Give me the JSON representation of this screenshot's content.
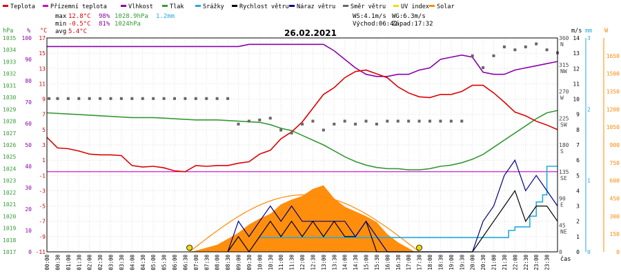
{
  "legend": [
    {
      "label": "Teplota",
      "color": "#dd0000"
    },
    {
      "label": "Přízemní teplota",
      "color": "#cc00cc"
    },
    {
      "label": "Vlhkost",
      "color": "#8800aa"
    },
    {
      "label": "Tlak",
      "color": "#339933"
    },
    {
      "label": "Srážky",
      "color": "#22aadd"
    },
    {
      "label": "Rychlost větru",
      "color": "#000000"
    },
    {
      "label": "Náraz větru",
      "color": "#000088"
    },
    {
      "label": "Směr větru",
      "color": "#666666"
    },
    {
      "label": "UV index",
      "color": "#eedd00"
    },
    {
      "label": "Solar",
      "color": "#ff8800"
    }
  ],
  "stats": {
    "max_label": "max",
    "max_temp": "12.8°C",
    "max_hum": "98%",
    "max_press": "1028.9hPa",
    "rain_total": "1.2mm",
    "min_label": "min",
    "min_temp": "-0.5°C",
    "min_hum": "81%",
    "min_press": "1024hPa",
    "avg_label": "avg",
    "avg_temp": "5.4°C",
    "wind_avg": "WS:4.1m/s",
    "wind_gust": "WG:6.3m/s",
    "sunrise": "Východ:06:42",
    "sunset": "Západ:17:32"
  },
  "colors": {
    "temperature": "#dd0000",
    "ground_temp": "#cc00cc",
    "humidity": "#8800aa",
    "pressure": "#339933",
    "rain": "#22aadd",
    "wind": "#000000",
    "gust": "#000088",
    "direction": "#666666",
    "uv": "#eedd00",
    "solar": "#ff8800",
    "solar_potential": "#ff8800"
  },
  "chart_data": {
    "type": "line",
    "title": "26.02.2021",
    "xlabel": "čas",
    "x_ticks": [
      "00:00",
      "00:30",
      "01:00",
      "01:30",
      "02:00",
      "02:30",
      "03:00",
      "03:30",
      "04:00",
      "04:30",
      "05:00",
      "05:30",
      "06:00",
      "06:30",
      "07:00",
      "07:30",
      "08:00",
      "08:30",
      "09:00",
      "09:30",
      "10:00",
      "10:30",
      "11:00",
      "11:30",
      "12:00",
      "12:30",
      "13:00",
      "13:30",
      "14:00",
      "14:30",
      "15:00",
      "15:30",
      "16:00",
      "16:30",
      "17:00",
      "17:30",
      "18:00",
      "18:30",
      "19:00",
      "19:30",
      "20:00",
      "20:30",
      "21:00",
      "21:30",
      "22:00",
      "22:30",
      "23:00",
      "23:30"
    ],
    "x_range_hours": [
      0,
      24
    ],
    "axes": {
      "pressure": {
        "unit": "hPa",
        "range": [
          1017,
          1035
        ],
        "ticks": [
          "1035",
          "1034",
          "1033",
          "1032",
          "1031",
          "1030",
          "1029",
          "1028",
          "1027",
          "1026",
          "1025",
          "1024",
          "1023",
          "1022",
          "1021",
          "1020",
          "1019",
          "1018",
          "1017"
        ]
      },
      "humidity": {
        "unit": "%",
        "range": [
          0,
          100
        ],
        "ticks": [
          "100",
          "90",
          "80",
          "70",
          "60",
          "50",
          "40",
          "30",
          "20",
          "10",
          "0"
        ]
      },
      "temperature": {
        "unit": "°C",
        "range": [
          -11,
          17
        ],
        "ticks": [
          "17",
          "15",
          "13",
          "11",
          "9",
          "7",
          "5",
          "3",
          "1",
          "-1",
          "-3",
          "-5",
          "-7",
          "-9",
          "-11"
        ]
      },
      "wind_speed": {
        "unit": "m/s",
        "range": [
          0,
          14
        ],
        "ticks": [
          "14",
          "13",
          "12",
          "11",
          "10",
          "9",
          "8",
          "7",
          "6",
          "5",
          "4",
          "3",
          "2",
          "1",
          "0"
        ]
      },
      "direction": {
        "ticks": [
          "360\nN",
          "315\nNW",
          "270\nW",
          "225\nSW",
          "180\nS",
          "135\nSE",
          "90\nE",
          "45\nNE",
          "0"
        ]
      },
      "rain": {
        "unit": "mm",
        "range": [
          0,
          3
        ],
        "ticks": [
          "3",
          "2",
          "1",
          "0"
        ]
      },
      "solar": {
        "unit": "W",
        "range": [
          0,
          1800
        ],
        "ticks": [
          "1650",
          "1500",
          "1350",
          "1200",
          "1050",
          "900",
          "750",
          "600",
          "450",
          "300",
          "150",
          "0"
        ]
      }
    },
    "series": [
      {
        "name": "Teplota",
        "unit": "°C",
        "x": [
          0,
          0.5,
          1,
          1.5,
          2,
          2.5,
          3,
          3.5,
          4,
          4.5,
          5,
          5.5,
          6,
          6.5,
          7,
          7.5,
          8,
          8.5,
          9,
          9.5,
          10,
          10.5,
          11,
          11.5,
          12,
          12.5,
          13,
          13.5,
          14,
          14.5,
          15,
          15.5,
          16,
          16.5,
          17,
          17.5,
          18,
          18.5,
          19,
          19.5,
          20,
          20.5,
          21,
          21.5,
          22,
          22.5,
          23,
          23.5,
          24
        ],
        "values": [
          4.0,
          2.6,
          2.5,
          2.2,
          1.8,
          1.7,
          1.7,
          1.6,
          0.3,
          0.1,
          0.2,
          0.0,
          -0.4,
          -0.5,
          0.3,
          0.2,
          0.3,
          0.3,
          0.6,
          0.8,
          1.8,
          2.3,
          3.8,
          4.7,
          6.0,
          7.8,
          9.6,
          10.5,
          11.8,
          12.6,
          12.8,
          12.3,
          11.8,
          10.6,
          9.8,
          9.3,
          9.2,
          9.6,
          9.6,
          10.0,
          10.8,
          10.8,
          9.8,
          8.6,
          7.3,
          6.8,
          6.1,
          5.6,
          5.0
        ]
      },
      {
        "name": "Vlhkost",
        "unit": "%",
        "x": [
          0,
          1,
          2,
          3,
          4,
          5,
          6,
          7,
          8,
          9,
          9.5,
          10,
          11,
          12,
          12.5,
          13,
          13.5,
          14,
          14.5,
          15,
          15.5,
          16,
          16.5,
          17,
          17.5,
          18,
          18.5,
          19,
          19.5,
          20,
          20.5,
          21,
          21.5,
          22,
          22.5,
          23,
          23.5,
          24
        ],
        "values": [
          96,
          96,
          96,
          96,
          96,
          96,
          96,
          96,
          96,
          96,
          97,
          97,
          97,
          97,
          97,
          97,
          94,
          90,
          86,
          83,
          82,
          82,
          83,
          83,
          85,
          86,
          90,
          91,
          92,
          91,
          84,
          83,
          83,
          85,
          86,
          87,
          88,
          89
        ]
      },
      {
        "name": "Tlak",
        "unit": "hPa",
        "x": [
          0,
          1,
          2,
          3,
          4,
          5,
          6,
          7,
          8,
          9,
          10,
          10.5,
          11,
          11.5,
          12,
          12.5,
          13,
          13.5,
          14,
          14.5,
          15,
          15.5,
          16,
          16.5,
          17,
          17.5,
          18,
          18.5,
          19,
          19.5,
          20,
          20.5,
          21,
          21.5,
          22,
          22.5,
          23,
          23.5,
          24
        ],
        "values": [
          1028.7,
          1028.6,
          1028.5,
          1028.4,
          1028.3,
          1028.3,
          1028.2,
          1028.1,
          1028.1,
          1028.0,
          1027.9,
          1027.7,
          1027.4,
          1027.2,
          1026.8,
          1026.4,
          1026.0,
          1025.5,
          1025.0,
          1024.6,
          1024.3,
          1024.1,
          1024.0,
          1024.0,
          1023.9,
          1023.9,
          1024.0,
          1024.2,
          1024.3,
          1024.5,
          1024.8,
          1025.2,
          1025.8,
          1026.4,
          1027.0,
          1027.6,
          1028.2,
          1028.7,
          1028.9
        ]
      },
      {
        "name": "Přízemní teplota",
        "unit": "°C",
        "x": [
          0,
          24
        ],
        "values": [
          -0.5,
          -0.5
        ]
      },
      {
        "name": "Solar",
        "unit": "W",
        "x": [
          6.7,
          7,
          8,
          8.5,
          9,
          9.5,
          10,
          10.5,
          11,
          11.5,
          12,
          12.5,
          13,
          13.5,
          14,
          14.5,
          15,
          15.5,
          16,
          16.5,
          17,
          17.3
        ],
        "values": [
          0,
          10,
          60,
          110,
          160,
          230,
          280,
          320,
          400,
          440,
          470,
          530,
          560,
          450,
          380,
          340,
          300,
          250,
          150,
          80,
          30,
          0
        ]
      },
      {
        "name": "Rychlost větru",
        "unit": "m/s",
        "x": [
          8.5,
          9,
          9.5,
          10,
          10.5,
          11,
          11.5,
          12,
          12.5,
          13,
          13.5,
          14,
          14.5,
          15,
          15.5,
          16,
          20,
          20.5,
          21,
          21.5,
          22,
          22.5,
          23,
          23.5,
          24
        ],
        "values": [
          0,
          1,
          0,
          1,
          2,
          1,
          2,
          1,
          2,
          1,
          2,
          1,
          1,
          2,
          0,
          0,
          0,
          1,
          2,
          3,
          4,
          2,
          3,
          3,
          2
        ]
      },
      {
        "name": "Náraz větru",
        "unit": "m/s",
        "x": [
          8.5,
          9,
          9.5,
          10,
          10.5,
          11,
          11.5,
          12,
          12.5,
          13,
          13.5,
          14,
          14.5,
          15,
          15.5,
          16,
          20,
          20.5,
          21,
          21.5,
          22,
          22.5,
          23,
          23.5,
          24
        ],
        "values": [
          0,
          2,
          1,
          2,
          3,
          2,
          3,
          2,
          2,
          2,
          2,
          2,
          1,
          2,
          1,
          0,
          0,
          2,
          3,
          5,
          6,
          4,
          5,
          4,
          3
        ]
      },
      {
        "name": "Srážky",
        "unit": "mm",
        "x": [
          10.0,
          20.9,
          21.7,
          22.0,
          22.7,
          23.0,
          23.3,
          23.5,
          24.0
        ],
        "values": [
          0.2,
          0.2,
          0.3,
          0.35,
          0.5,
          0.7,
          0.8,
          1.2,
          1.2
        ]
      },
      {
        "name": "Směr větru",
        "unit": "°",
        "x": [
          0.1,
          0.5,
          1,
          1.5,
          2,
          2.5,
          3,
          3.5,
          4,
          4.5,
          5,
          5.5,
          6,
          6.5,
          7,
          7.5,
          8,
          8.5,
          9,
          9.5,
          10,
          10.5,
          11,
          11.5,
          12,
          12.5,
          13,
          13.5,
          14,
          14.5,
          15,
          15.5,
          16,
          16.5,
          17,
          17.5,
          18,
          18.5,
          19,
          19.5,
          20,
          20.5,
          21,
          21.5,
          22,
          22.5,
          23,
          23.5,
          24
        ],
        "values": [
          258,
          258,
          258,
          258,
          258,
          258,
          258,
          258,
          258,
          258,
          258,
          258,
          258,
          258,
          258,
          258,
          258,
          258,
          215,
          220,
          222,
          225,
          205,
          200,
          215,
          220,
          205,
          215,
          220,
          215,
          220,
          215,
          220,
          220,
          220,
          220,
          220,
          220,
          220,
          220,
          330,
          310,
          330,
          345,
          340,
          345,
          350,
          340,
          335
        ]
      }
    ],
    "uv_markers": [
      6.7,
      17.5
    ],
    "grid": true
  }
}
